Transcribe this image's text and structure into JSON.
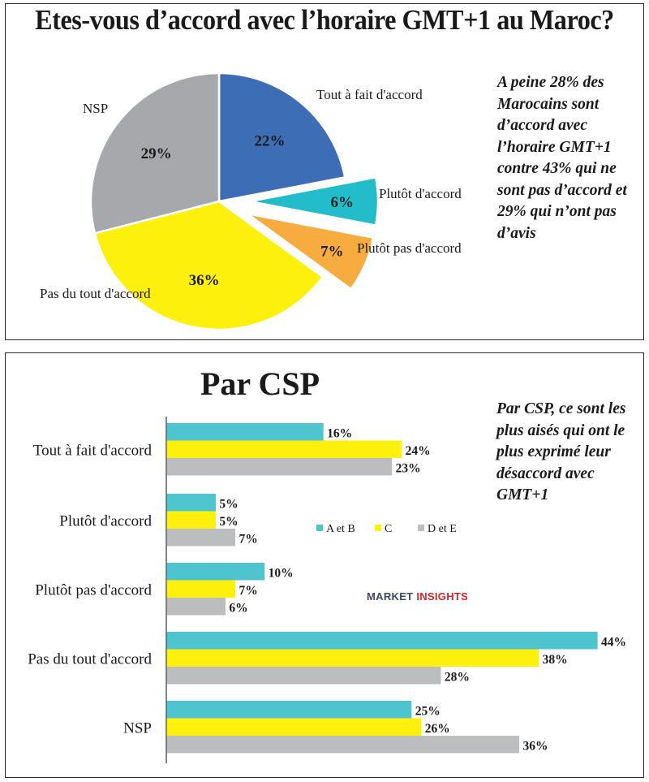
{
  "top": {
    "title": "Etes-vous d’accord avec l’horaire GMT+1 au Maroc?",
    "note": "A peine 28% des Marocains sont d’accord avec l’horaire GMT+1 contre 43% qui ne sont pas d’accord et 29% qui n’ont pas d’avis"
  },
  "bottom": {
    "title": "Par CSP",
    "note": "Par CSP, ce sont les plus aisés qui ont le plus exprimé leur désaccord avec GMT+1"
  },
  "brand": {
    "part1": "MARKET ",
    "part2": "INSIGHTS"
  },
  "chart_data": [
    {
      "type": "pie",
      "title": "Etes-vous d’accord avec l’horaire GMT+1 au Maroc?",
      "slices": [
        {
          "label": "Tout à fait d'accord",
          "value": 22,
          "value_label": "22%",
          "color": "#3d6db5",
          "exploded": false
        },
        {
          "label": "Plutôt d'accord",
          "value": 6,
          "value_label": "6%",
          "color": "#22bccb",
          "exploded": true
        },
        {
          "label": "Plutôt pas d'accord",
          "value": 7,
          "value_label": "7%",
          "color": "#f8ab3e",
          "exploded": true
        },
        {
          "label": "Pas du tout d'accord",
          "value": 36,
          "value_label": "36%",
          "color": "#fcf00c",
          "exploded": false
        },
        {
          "label": "NSP",
          "value": 29,
          "value_label": "29%",
          "color": "#a6a8ab",
          "exploded": false
        }
      ],
      "start_angle_deg": 0,
      "direction": "clockwise"
    },
    {
      "type": "bar",
      "orientation": "horizontal",
      "title": "Par CSP",
      "categories": [
        "Tout à fait d'accord",
        "Plutôt d'accord",
        "Plutôt pas d'accord",
        "Pas du tout d'accord",
        "NSP"
      ],
      "series": [
        {
          "name": "A et B",
          "color": "#4ec4cf",
          "values": [
            16,
            5,
            10,
            44,
            25
          ],
          "labels": [
            "16%",
            "5%",
            "10%",
            "44%",
            "25%"
          ]
        },
        {
          "name": "C",
          "color": "#fcf00c",
          "values": [
            24,
            5,
            7,
            38,
            26
          ],
          "labels": [
            "24%",
            "5%",
            "7%",
            "38%",
            "26%"
          ]
        },
        {
          "name": "D et E",
          "color": "#bcbdbf",
          "values": [
            23,
            7,
            6,
            28,
            36
          ],
          "labels": [
            "23%",
            "7%",
            "6%",
            "28%",
            "36%"
          ]
        }
      ],
      "xlim": [
        0,
        44
      ],
      "legend_position": "right-middle",
      "grid": false
    }
  ]
}
